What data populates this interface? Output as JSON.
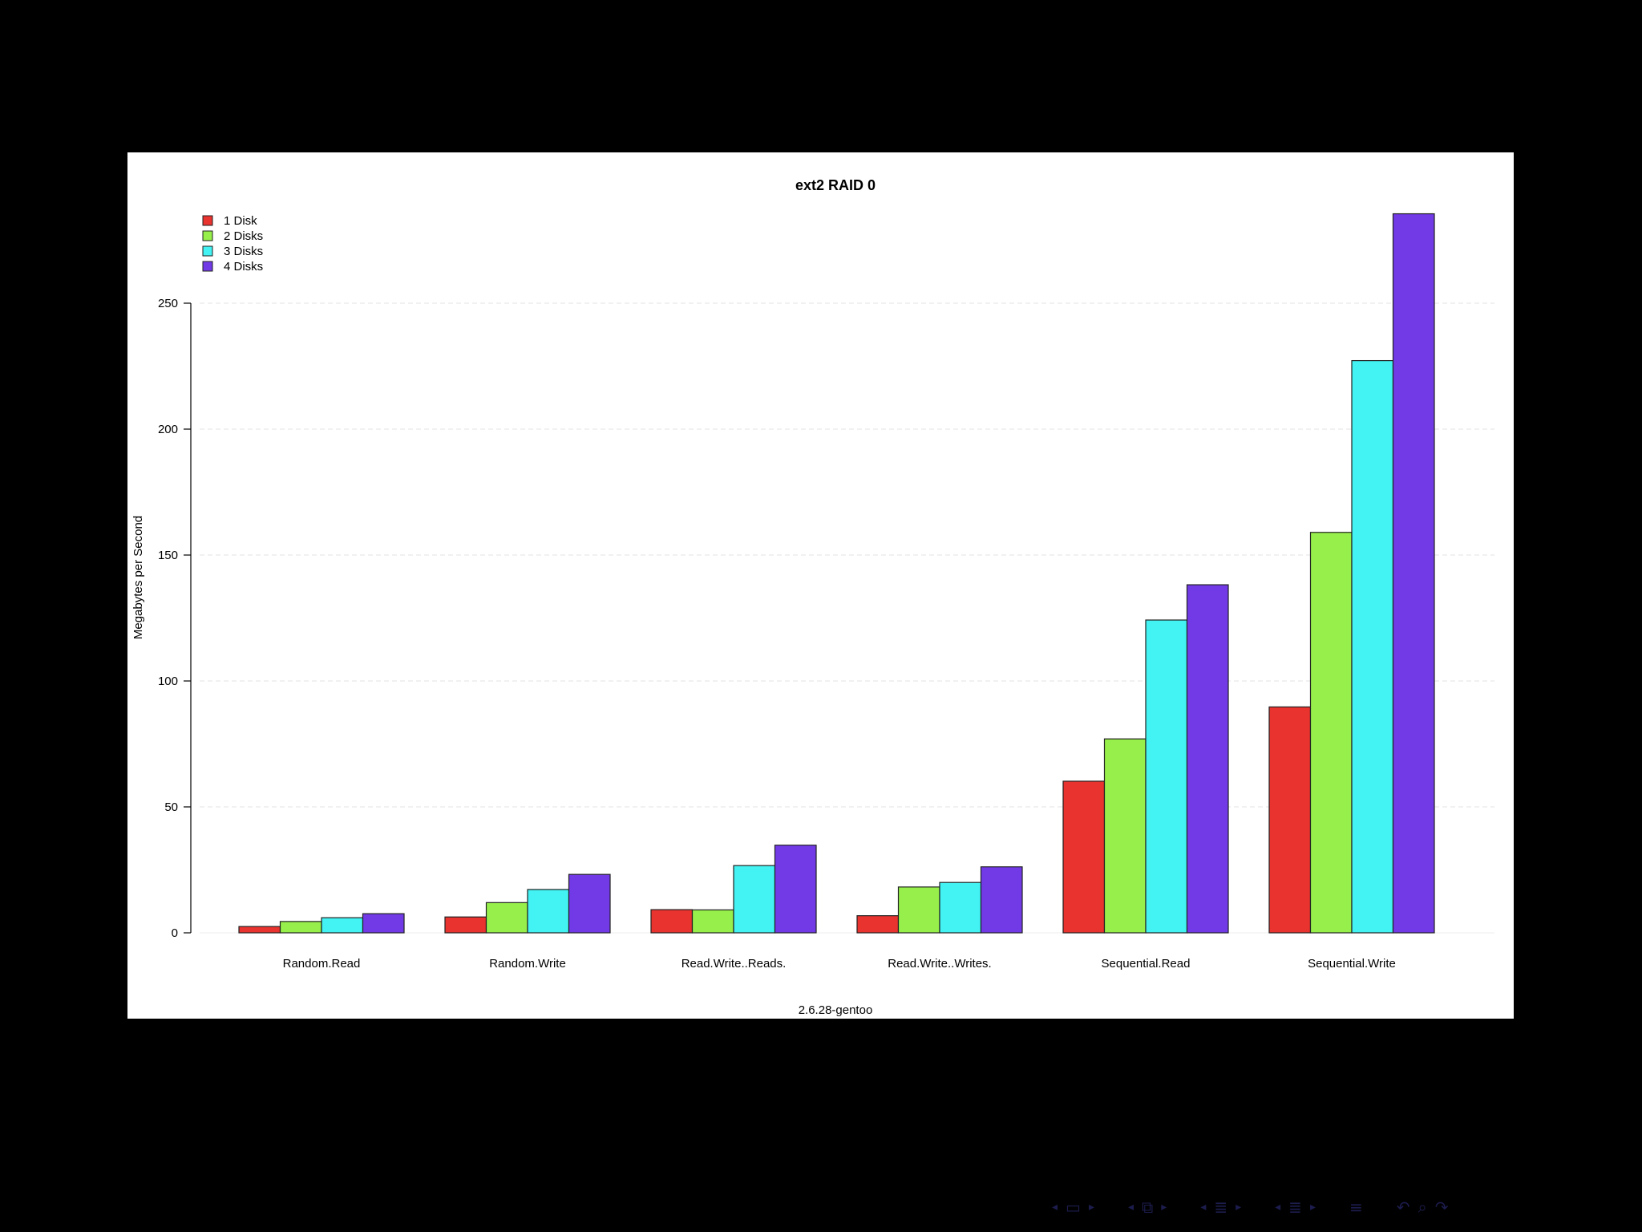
{
  "chart_data": {
    "type": "bar",
    "title": "ext2 RAID 0",
    "xlabel": "2.6.28-gentoo",
    "ylabel": "Megabytes per Second",
    "ylim": [
      0,
      285
    ],
    "yticks": [
      0,
      50,
      100,
      150,
      200,
      250
    ],
    "grid": true,
    "legend_position": "top-left",
    "categories": [
      "Random.Read",
      "Random.Write",
      "Read.Write..Reads.",
      "Read.Write..Writes.",
      "Sequential.Read",
      "Sequential.Write"
    ],
    "series": [
      {
        "name": "1 Disk",
        "color": "#e8332e",
        "values": [
          2.5,
          6.3,
          9.2,
          6.8,
          60.2,
          89.7
        ]
      },
      {
        "name": "2 Disks",
        "color": "#96ef4a",
        "values": [
          4.5,
          12,
          9.1,
          18.2,
          77,
          159
        ]
      },
      {
        "name": "3 Disks",
        "color": "#43f2f2",
        "values": [
          6,
          17.2,
          26.7,
          20,
          124.2,
          227.2
        ]
      },
      {
        "name": "4 Disks",
        "color": "#713ae6",
        "values": [
          7.6,
          23.2,
          34.8,
          26.2,
          138.2,
          285.5
        ]
      }
    ]
  },
  "navigation": {
    "icons": [
      "nav-left-arrow-icon",
      "frame-icon",
      "nav-right-arrow-icon",
      "nav-left-arrow-icon",
      "subsection-icon",
      "nav-right-arrow-icon",
      "nav-left-arrow-icon",
      "section-icon",
      "nav-right-arrow-icon",
      "nav-left-arrow-icon",
      "document-icon",
      "nav-right-arrow-icon",
      "toc-icon",
      "back-icon",
      "search-icon",
      "forward-icon"
    ]
  }
}
